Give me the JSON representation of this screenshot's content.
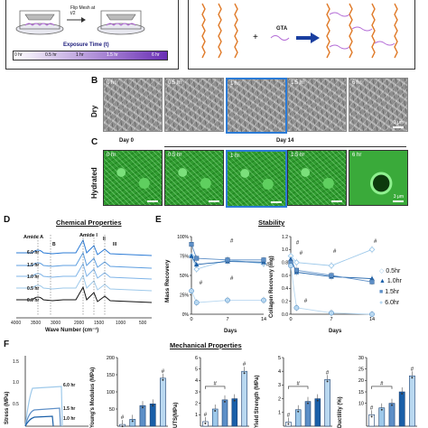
{
  "panels": {
    "a": {
      "flip_label": "Flip Mesh at t/2",
      "exposure_label": "Exposure Time (t)",
      "ticks": [
        "0 hr",
        "0.5 hr",
        "1 hr",
        "1.5 hr",
        "6 hr"
      ],
      "gta_label": "GTA",
      "colors": {
        "gradient_start": "#ffffff",
        "gradient_end": "#6a2fb5",
        "chain": "#e07b2a",
        "crosslink": "#b36bd6"
      }
    },
    "b": {
      "letter": "B",
      "row_label": "Dry",
      "tiles": [
        "0 hr",
        "0.5 hr",
        "1 hr",
        "1.5 hr",
        "6 hr"
      ],
      "scale_label": "3 μm"
    },
    "c": {
      "letter": "C",
      "row_label": "Hydrated",
      "day0": "Day 0",
      "day14": "Day 14",
      "tiles": [
        "0 hr",
        "0.5 hr",
        "1 hr",
        "1.5 hr",
        "6 hr"
      ],
      "scale_label": "3 μm"
    },
    "d": {
      "letter": "D",
      "title": "Chemical Properties",
      "amide_a": "Amide A",
      "amide_i": "Amide I",
      "mark_b": "B",
      "mark_ii": "II",
      "mark_iii": "III",
      "traces": [
        "6.0 hr",
        "1.5 hr",
        "1.0 hr",
        "0.5 hr",
        "0.0 hr"
      ],
      "xlabel": "Wave Number (cm⁻¹)",
      "xticks": [
        "4000",
        "3500",
        "3000",
        "2000",
        "1500",
        "1000",
        "500"
      ]
    },
    "e": {
      "letter": "E",
      "title": "Stability",
      "left_ylabel": "Mass Recovery",
      "right_ylabel": "Collagen Recovery (mg)",
      "left_yticks": [
        "100%",
        "75%",
        "50%",
        "25%",
        "0%"
      ],
      "right_yticks": [
        "1.2",
        "1.0",
        "0.8",
        "0.6",
        "0.4",
        "0.2",
        "0.0"
      ],
      "xticks": [
        "0",
        "7",
        "14"
      ],
      "xlabel": "Days",
      "hash": "#",
      "legend": [
        "0.5hr",
        "1.0hr",
        "1.5hr",
        "6.0hr"
      ]
    },
    "f": {
      "letter": "F",
      "title": "Mechanical Properties",
      "stress_ylabel": "Stress (MPa)",
      "stress_yticks": [
        "1.5",
        "1.0",
        "0.5"
      ],
      "curve_labels": [
        "6.0 hr",
        "1.5 hr",
        "1.0 hr"
      ],
      "modulus_ylabel": "Young's Modulus (MPa)",
      "modulus_yticks": [
        "200",
        "150",
        "100",
        "50"
      ],
      "uts_ylabel": "UTS(MPa)",
      "uts_yticks": [
        "6",
        "5",
        "4",
        "3",
        "2",
        "1"
      ],
      "yield_ylabel": "Yield Strength (MPa)",
      "yield_yticks": [
        "5",
        "4",
        "3",
        "2",
        "1"
      ],
      "ductility_ylabel": "Ductility (%)",
      "ductility_yticks": [
        "30",
        "25",
        "20",
        "15",
        "10"
      ],
      "hash": "#"
    }
  },
  "chart_data": [
    {
      "type": "line",
      "title": "Stability",
      "xlabel": "Days",
      "ylabel": "Mass Recovery",
      "x": [
        0,
        1,
        7,
        14
      ],
      "ylim": [
        0,
        100
      ],
      "series": [
        {
          "name": "0.5hr",
          "values": [
            75,
            58,
            70,
            65
          ]
        },
        {
          "name": "1.0hr",
          "values": [
            75,
            64,
            68,
            67
          ]
        },
        {
          "name": "1.5hr",
          "values": [
            90,
            72,
            70,
            70
          ]
        },
        {
          "name": "6.0hr",
          "values": [
            30,
            15,
            18,
            18
          ]
        }
      ]
    },
    {
      "type": "line",
      "xlabel": "Days",
      "ylabel": "Collagen Recovery (mg)",
      "x": [
        0,
        1,
        7,
        14
      ],
      "ylim": [
        0,
        1.2
      ],
      "series": [
        {
          "name": "0.5hr",
          "values": [
            0.9,
            0.8,
            0.75,
            1.0
          ]
        },
        {
          "name": "1.0hr",
          "values": [
            0.85,
            0.65,
            0.58,
            0.55
          ]
        },
        {
          "name": "1.5hr",
          "values": [
            0.8,
            0.68,
            0.6,
            0.5
          ]
        },
        {
          "name": "6.0hr",
          "values": [
            0.75,
            0.1,
            0.02,
            0.0
          ]
        }
      ]
    },
    {
      "type": "bar",
      "ylabel": "Young's Modulus (MPa)",
      "ylim": [
        0,
        200
      ],
      "values": [
        5,
        20,
        60,
        65,
        140
      ]
    },
    {
      "type": "bar",
      "ylabel": "UTS(MPa)",
      "ylim": [
        0,
        6
      ],
      "values": [
        0.4,
        1.5,
        2.3,
        2.4,
        4.8
      ]
    },
    {
      "type": "bar",
      "ylabel": "Yield Strength (MPa)",
      "ylim": [
        0,
        5
      ],
      "values": [
        0.3,
        1.2,
        1.8,
        2.0,
        3.4
      ]
    },
    {
      "type": "bar",
      "ylabel": "Ductility (%)",
      "ylim": [
        0,
        30
      ],
      "values": [
        5,
        8,
        10,
        15,
        22
      ]
    }
  ]
}
